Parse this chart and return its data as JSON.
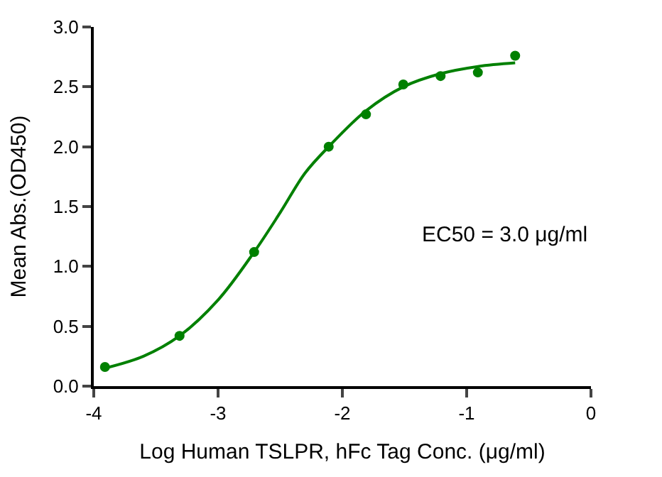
{
  "chart_data": {
    "type": "scatter",
    "xlabel": "Log Human TSLPR, hFc Tag Conc. (μg/ml)",
    "ylabel": "Mean Abs.(OD450)",
    "xlim": [
      -4,
      0
    ],
    "xticks": [
      -4,
      -3,
      -2,
      -1,
      0
    ],
    "ylim": [
      0,
      3
    ],
    "yticks": [
      {
        "value": 0,
        "label": "0.0"
      },
      {
        "value": 0.5,
        "label": "0.5"
      },
      {
        "value": 1,
        "label": "1.0"
      },
      {
        "value": 1.5,
        "label": "1.5"
      },
      {
        "value": 2,
        "label": "2.0"
      },
      {
        "value": 2.5,
        "label": "2.5"
      },
      {
        "value": 3,
        "label": "3.0"
      }
    ],
    "annotations": [
      "EC50 = 3.0 μg/ml"
    ],
    "series": [
      {
        "marker": "circle",
        "color": "#008000",
        "x": [
          -3.91,
          -3.31,
          -2.71,
          -2.11,
          -1.81,
          -1.51,
          -1.21,
          -0.91,
          -0.61
        ],
        "values": [
          0.16,
          0.42,
          1.12,
          2.0,
          2.27,
          2.52,
          2.59,
          2.62,
          2.76
        ]
      },
      {
        "type": "line",
        "marker": "none",
        "color": "#008000",
        "x": [
          -3.91,
          -3.6,
          -3.31,
          -3.0,
          -2.71,
          -2.5,
          -2.3,
          -2.11,
          -1.81,
          -1.51,
          -1.21,
          -0.91,
          -0.61
        ],
        "values": [
          0.15,
          0.25,
          0.42,
          0.72,
          1.12,
          1.45,
          1.78,
          2.0,
          2.3,
          2.5,
          2.61,
          2.67,
          2.7
        ]
      }
    ]
  }
}
